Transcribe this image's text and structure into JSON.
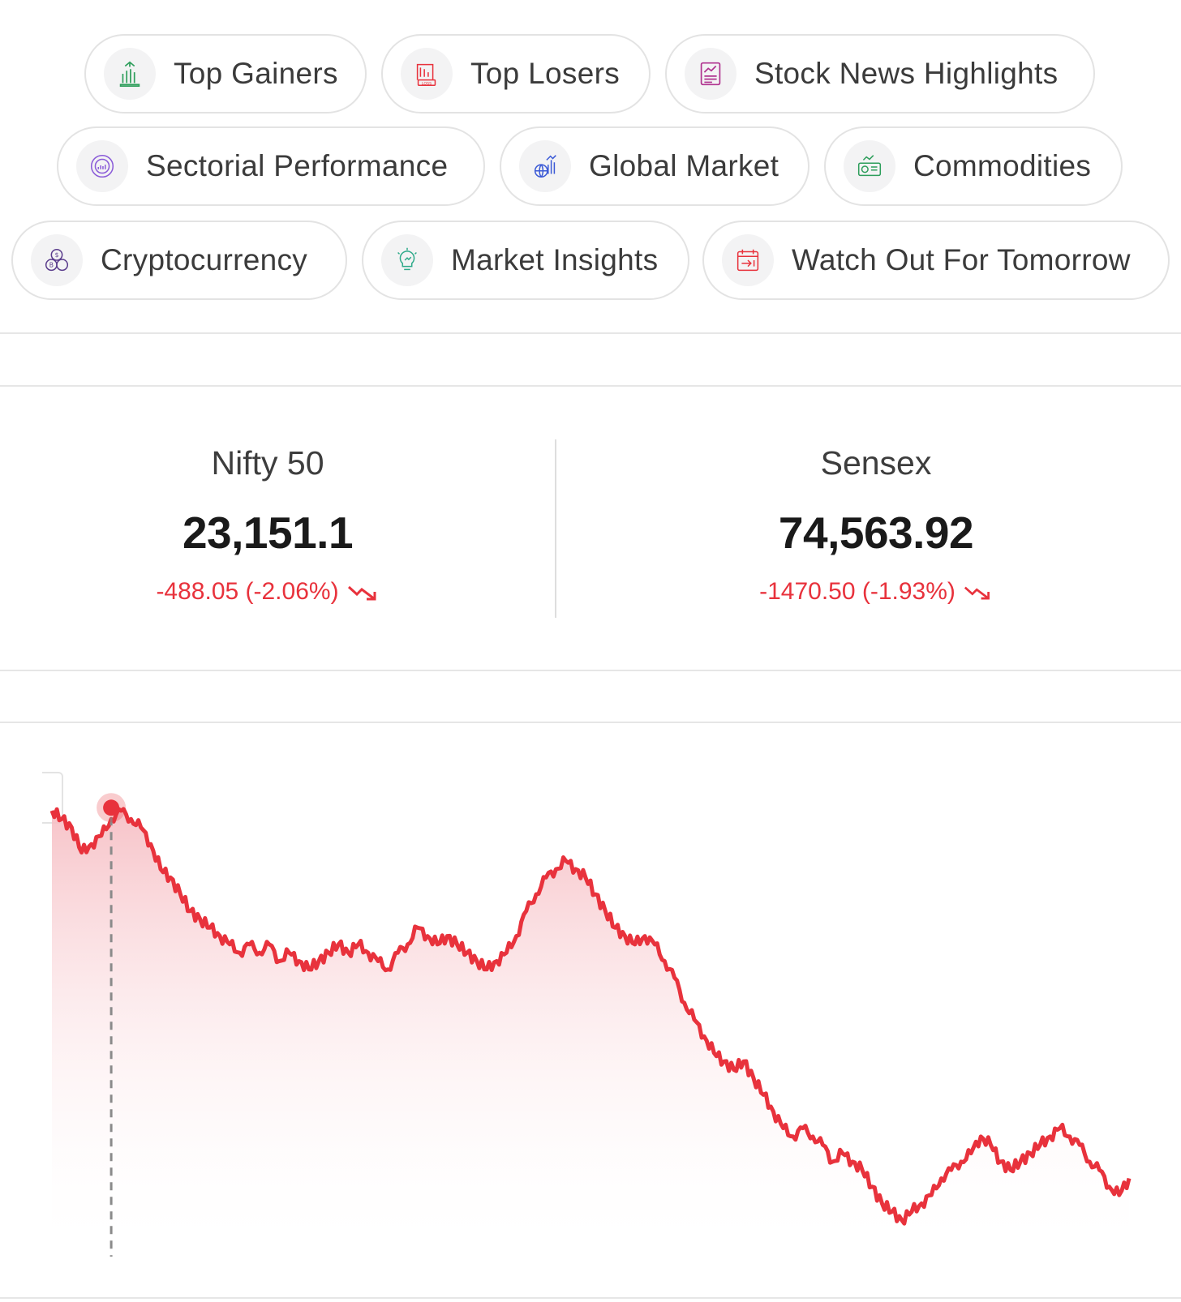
{
  "chips": [
    {
      "label": "Top Gainers",
      "icon": "top-gainers-icon",
      "color": "#2e9e5b"
    },
    {
      "label": "Top Losers",
      "icon": "top-losers-icon",
      "color": "#e8323c"
    },
    {
      "label": "Stock News Highlights",
      "icon": "stock-news-icon",
      "color": "#b0338f"
    },
    {
      "label": "Sectorial Performance",
      "icon": "sectorial-performance-icon",
      "color": "#8a5bd8"
    },
    {
      "label": "Global Market",
      "icon": "global-market-icon",
      "color": "#3b5ad6"
    },
    {
      "label": "Commodities",
      "icon": "commodities-icon",
      "color": "#2e9e5b"
    },
    {
      "label": "Cryptocurrency",
      "icon": "cryptocurrency-icon",
      "color": "#5a3c8c"
    },
    {
      "label": "Market Insights",
      "icon": "market-insights-icon",
      "color": "#2eaa8a"
    },
    {
      "label": "Watch Out For Tomorrow",
      "icon": "watch-out-calendar-icon",
      "color": "#e8323c"
    }
  ],
  "indices": {
    "nifty": {
      "name": "Nifty 50",
      "value": "23,151.1",
      "change": "-488.05 (-2.06%)",
      "trend": "down"
    },
    "sensex": {
      "name": "Sensex",
      "value": "74,563.92",
      "change": "-1470.50 (-1.93%)",
      "trend": "down"
    }
  },
  "colors": {
    "down": "#e8323c",
    "border": "#e3e3e3"
  },
  "chart_data": {
    "type": "area",
    "series": [
      {
        "values": [
          100,
          99,
          98,
          95,
          96,
          97,
          99,
          100,
          99,
          98,
          96,
          93,
          92,
          90,
          88,
          87,
          86,
          85,
          84,
          83,
          84,
          83,
          84,
          82,
          83,
          82,
          81,
          82,
          83,
          84,
          83,
          84,
          83,
          82,
          81,
          83,
          84,
          86,
          85,
          84,
          85,
          84,
          83,
          82,
          81,
          82,
          83,
          85,
          88,
          90,
          92,
          93,
          94,
          93,
          92,
          90,
          88,
          86,
          85,
          84,
          85,
          84,
          82,
          80,
          77,
          75,
          73,
          71,
          70,
          69,
          70,
          68,
          66,
          64,
          62,
          61,
          62,
          61,
          60,
          58,
          59,
          58,
          57,
          55,
          53,
          52,
          51,
          52,
          53,
          54,
          56,
          57,
          58,
          59,
          61,
          60,
          58,
          57,
          58,
          59,
          60,
          61,
          62,
          61,
          60,
          58,
          57,
          55,
          54,
          56
        ]
      }
    ],
    "highlight_index": 6
  }
}
